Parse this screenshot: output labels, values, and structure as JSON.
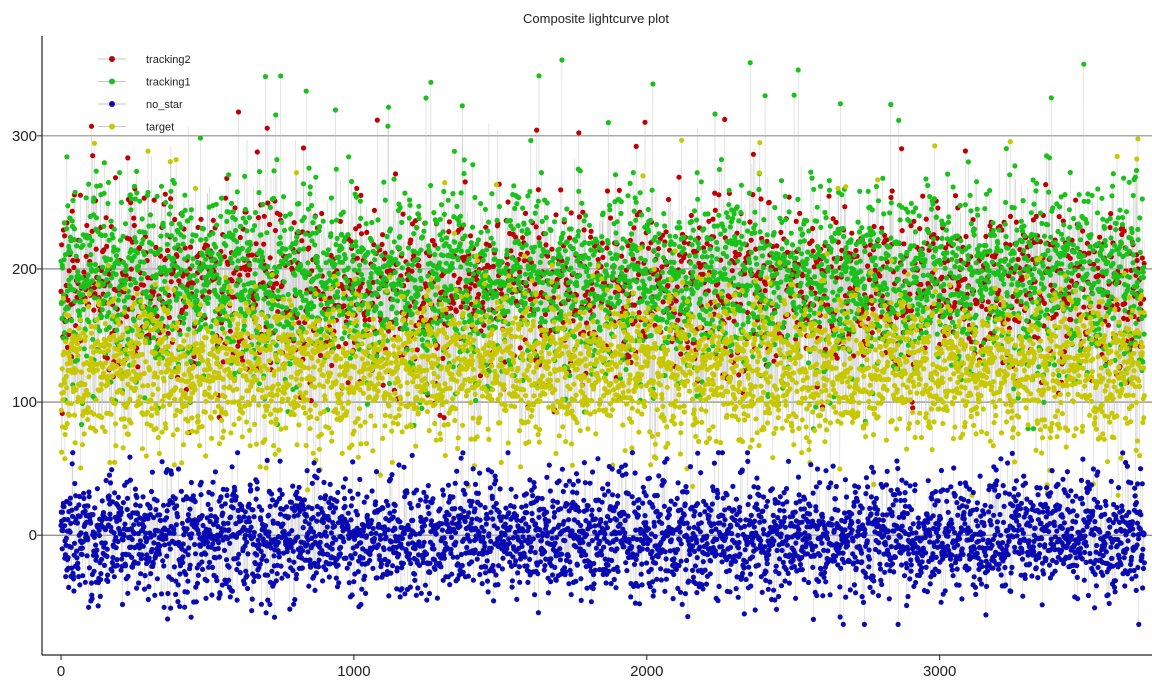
{
  "chart_data": {
    "type": "scatter",
    "title": "Composite lightcurve plot",
    "xlabel": "",
    "ylabel": "",
    "xlim": [
      -65,
      3725
    ],
    "ylim": [
      -90,
      375
    ],
    "x_ticks": [
      0,
      1000,
      2000,
      3000
    ],
    "y_ticks": [
      0,
      100,
      200,
      300
    ],
    "x_tick_labels": [
      "0",
      "1000",
      "2000",
      "3000"
    ],
    "y_tick_labels": [
      "0",
      "100",
      "200",
      "300"
    ],
    "grid": "horizontal",
    "legend": "top-left",
    "n_points": 3700,
    "series": [
      {
        "name": "tracking2",
        "color": "#c00000",
        "y_center": 185,
        "y_spread": 32,
        "y_min": 60,
        "y_max": 318
      },
      {
        "name": "tracking1",
        "color": "#19c219",
        "y_center": 190,
        "y_spread": 35,
        "y_min": 80,
        "y_max": 357
      },
      {
        "name": "no_star",
        "color": "#0a0ab4",
        "y_center": -2,
        "y_spread": 22,
        "y_min": -67,
        "y_max": 62
      },
      {
        "name": "target",
        "color": "#c8c800",
        "y_center": 125,
        "y_spread": 28,
        "y_min": 30,
        "y_max": 300
      }
    ],
    "connector_color": "#c4c4c4"
  }
}
